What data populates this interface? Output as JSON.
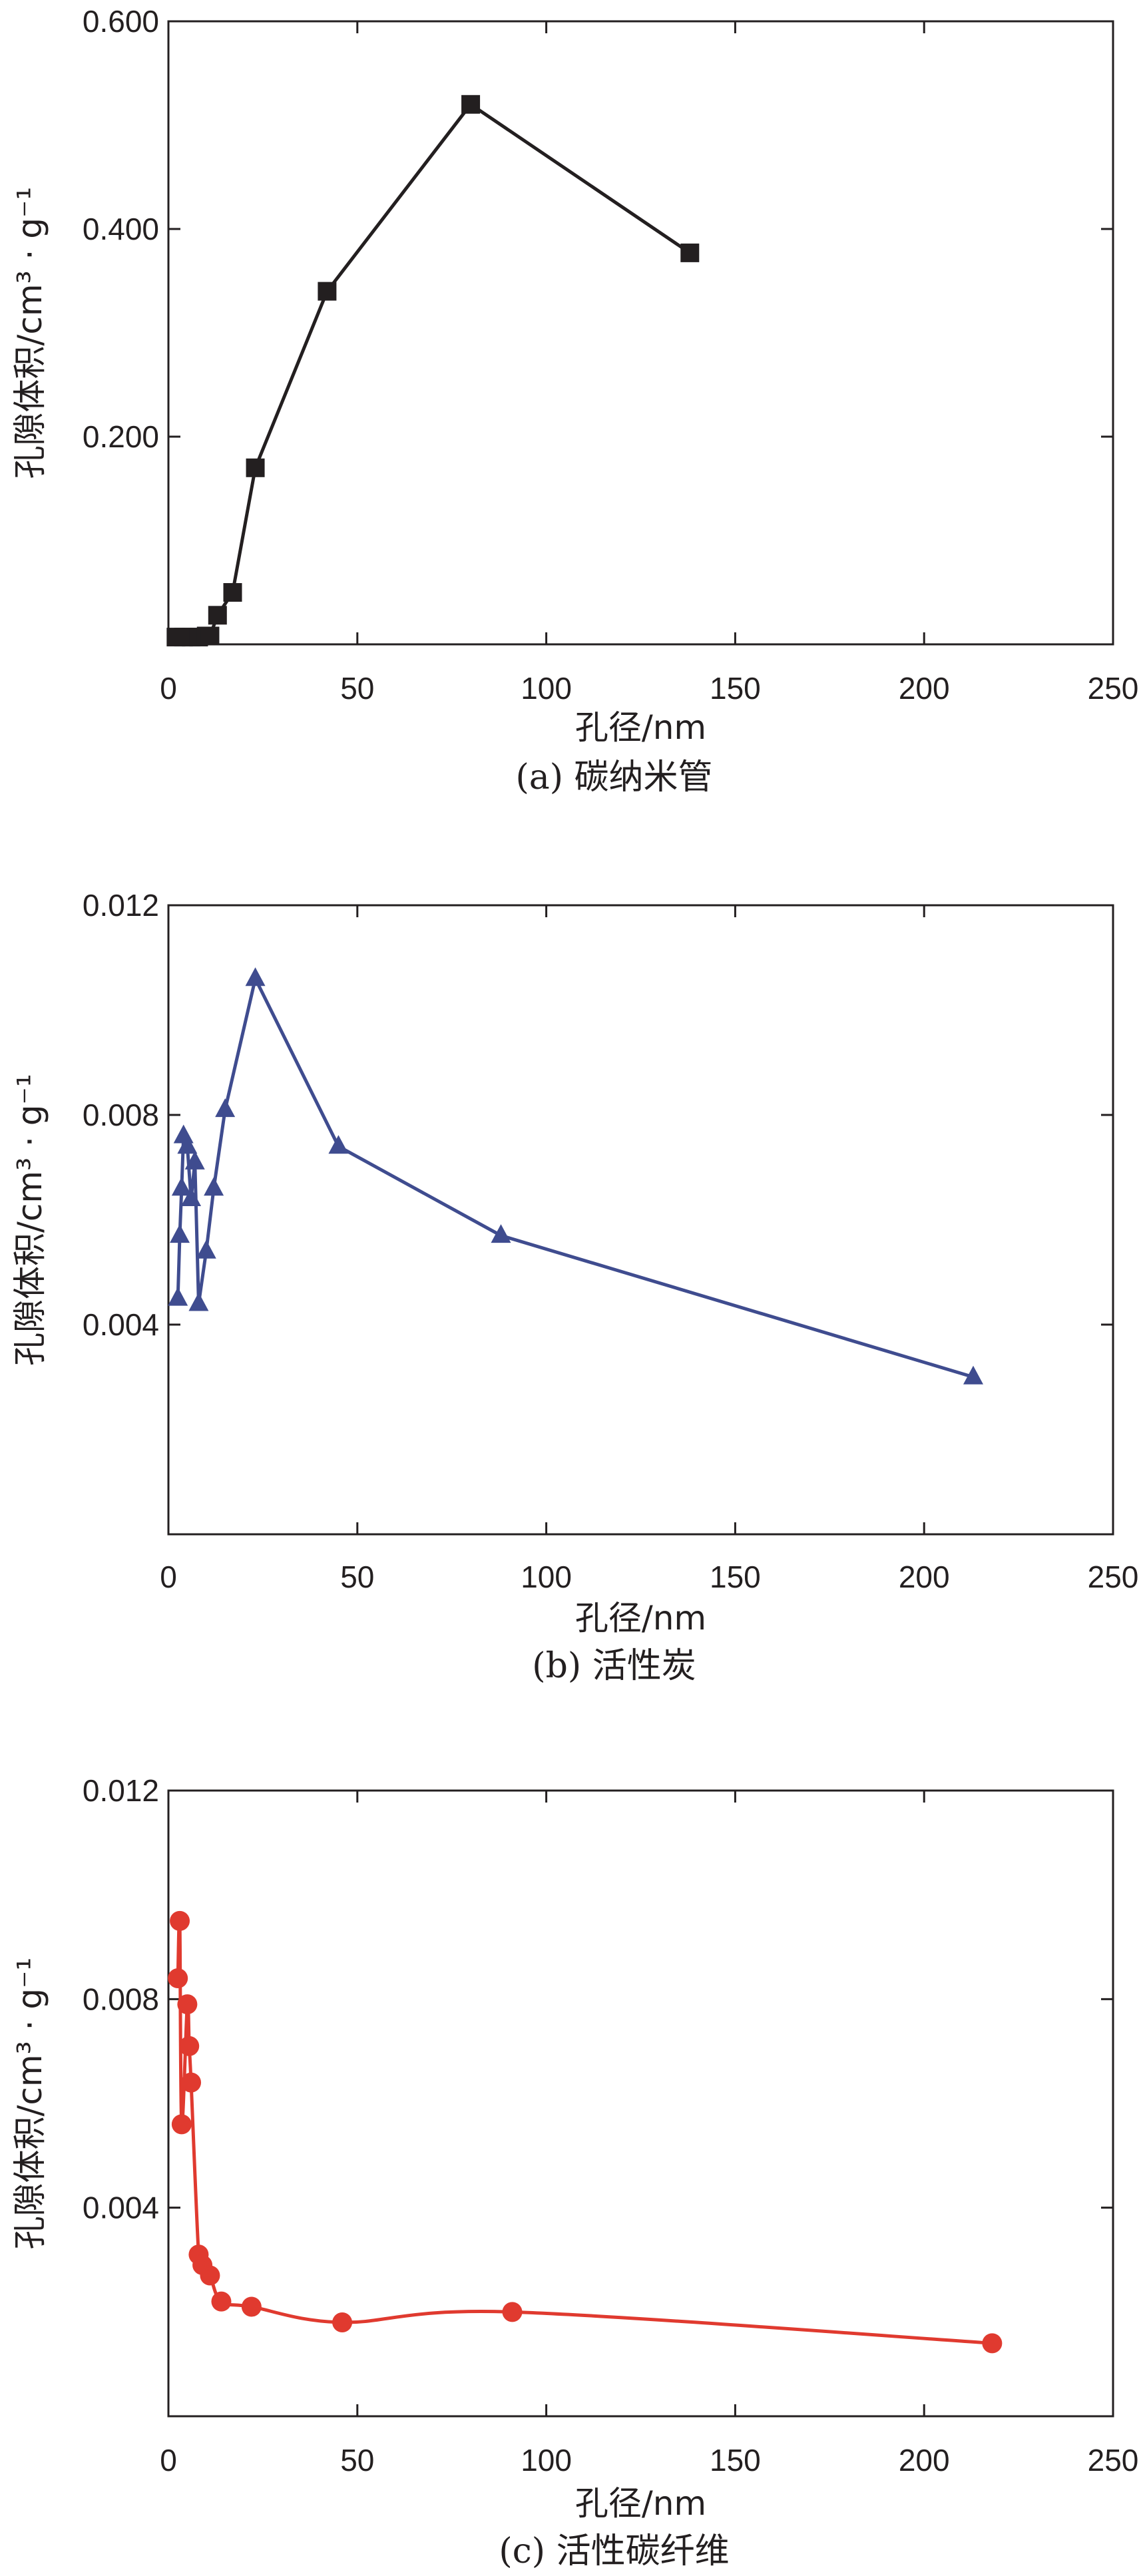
{
  "chart_data": [
    {
      "type": "line",
      "caption": "(a) 碳纳米管",
      "xlabel": "孔径/nm",
      "ylabel": "孔隙体积/cm³ · g⁻¹",
      "xlim": [
        0,
        250
      ],
      "ylim": [
        0.0,
        0.6
      ],
      "xticks": [
        0,
        50,
        100,
        150,
        200,
        250
      ],
      "xtick_labels": [
        "0",
        "50",
        "100",
        "150",
        "200",
        "250"
      ],
      "yticks": [
        0.2,
        0.4,
        0.6
      ],
      "ytick_labels": [
        "0.200",
        "0.400",
        "0.600"
      ],
      "grid": false,
      "series": [
        {
          "marker": "square",
          "color": "#231f20",
          "smooth": false,
          "x": [
            2,
            4,
            6,
            8,
            10,
            11,
            13,
            17,
            23,
            42,
            80,
            138
          ],
          "y": [
            0.007,
            0.007,
            0.007,
            0.007,
            0.008,
            0.008,
            0.028,
            0.05,
            0.17,
            0.34,
            0.52,
            0.377
          ]
        }
      ]
    },
    {
      "type": "line",
      "caption": "(b) 活性炭",
      "xlabel": "孔径/nm",
      "ylabel": "孔隙体积/cm³ · g⁻¹",
      "xlim": [
        0,
        250
      ],
      "ylim": [
        0.0,
        0.012
      ],
      "xticks": [
        0,
        50,
        100,
        150,
        200,
        250
      ],
      "xtick_labels": [
        "0",
        "50",
        "100",
        "150",
        "200",
        "250"
      ],
      "yticks": [
        0.004,
        0.008,
        0.012
      ],
      "ytick_labels": [
        "0.004",
        "0.008",
        "0.012"
      ],
      "grid": false,
      "series": [
        {
          "marker": "triangle",
          "color": "#3f4c8f",
          "smooth": false,
          "x": [
            2.5,
            3,
            3.5,
            4,
            5,
            6,
            7,
            8,
            10,
            12,
            15,
            23,
            45,
            88,
            213
          ],
          "y": [
            0.0045,
            0.0057,
            0.0066,
            0.0076,
            0.0074,
            0.0064,
            0.0071,
            0.0044,
            0.0054,
            0.0066,
            0.0081,
            0.0106,
            0.0074,
            0.0057,
            0.003
          ]
        }
      ]
    },
    {
      "type": "line",
      "caption": "(c) 活性碳纤维",
      "xlabel": "孔径/nm",
      "ylabel": "孔隙体积/cm³ · g⁻¹",
      "xlim": [
        0,
        250
      ],
      "ylim": [
        0.0,
        0.012
      ],
      "xticks": [
        0,
        50,
        100,
        150,
        200,
        250
      ],
      "xtick_labels": [
        "0",
        "50",
        "100",
        "150",
        "200",
        "250"
      ],
      "yticks": [
        0.004,
        0.008,
        0.012
      ],
      "ytick_labels": [
        "0.004",
        "0.008",
        "0.012"
      ],
      "grid": false,
      "series": [
        {
          "marker": "circle",
          "color": "#e03a2f",
          "smooth": true,
          "x": [
            2.5,
            3,
            3.5,
            5,
            5.5,
            6,
            8,
            9,
            11,
            14,
            22,
            46,
            91,
            218
          ],
          "y": [
            0.0084,
            0.0095,
            0.0056,
            0.0079,
            0.0071,
            0.0064,
            0.0031,
            0.0029,
            0.0027,
            0.0022,
            0.0021,
            0.0018,
            0.002,
            0.0014
          ]
        }
      ]
    }
  ]
}
